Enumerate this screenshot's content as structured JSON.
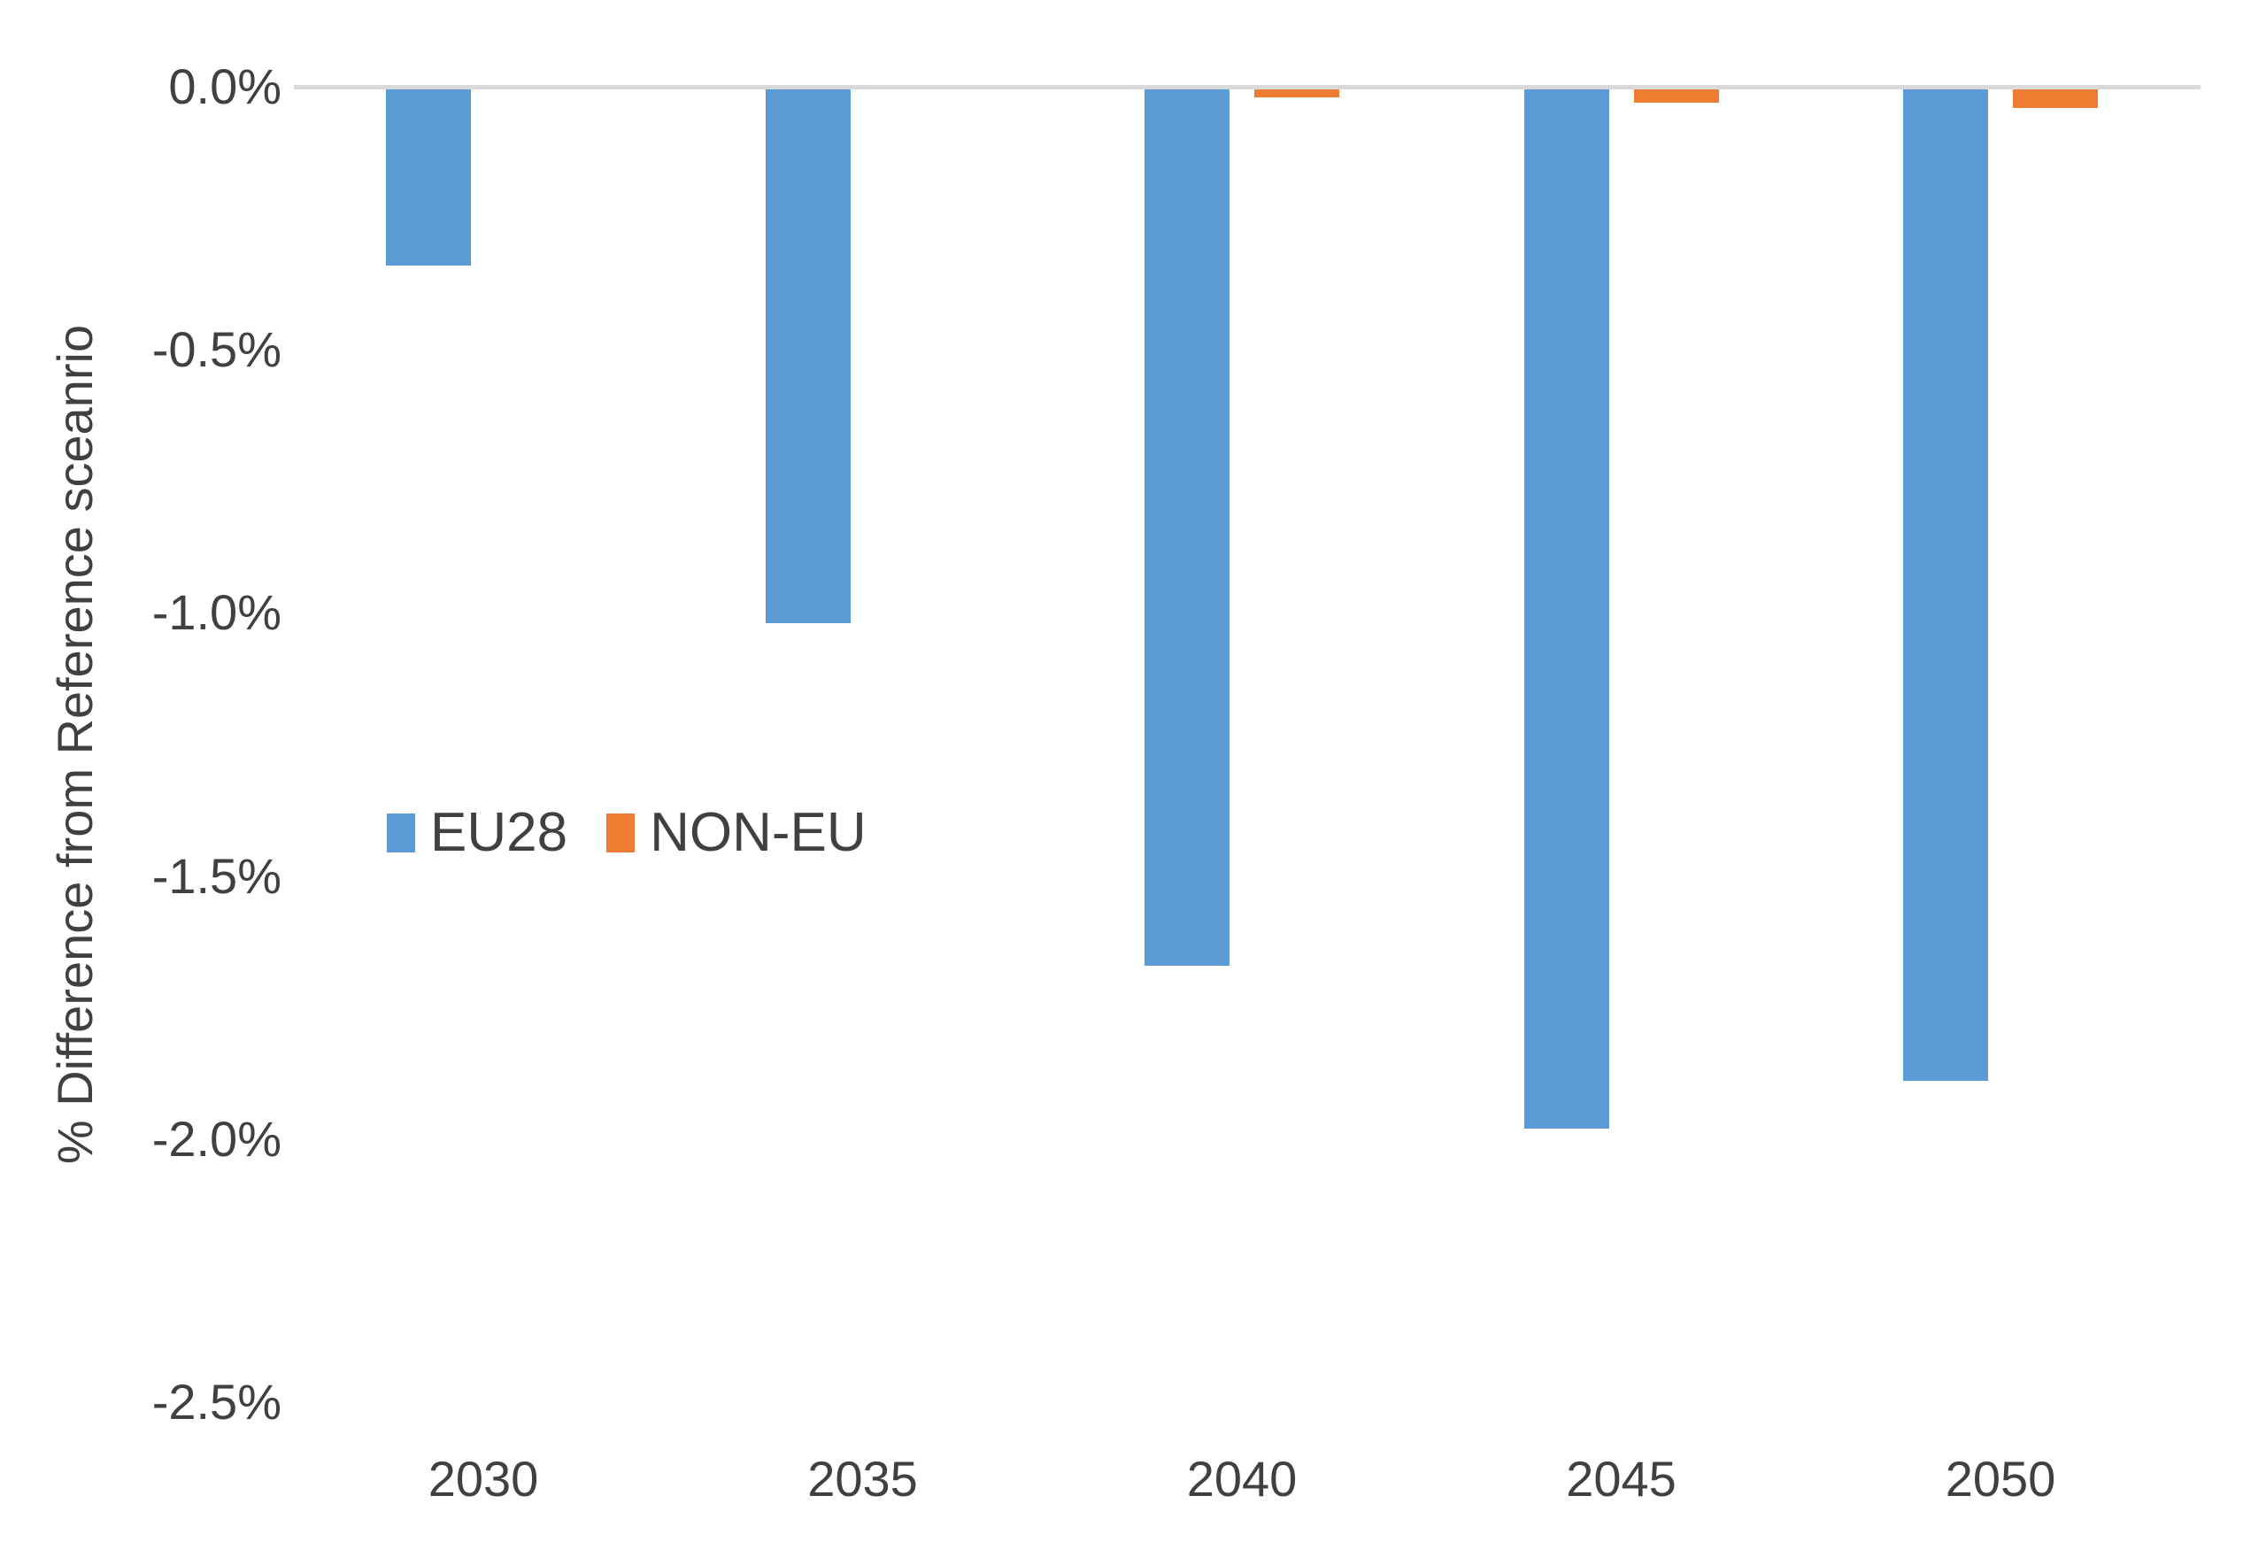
{
  "chart_data": {
    "type": "bar",
    "title": "",
    "categories": [
      "2030",
      "2035",
      "2040",
      "2045",
      "2050"
    ],
    "series": [
      {
        "name": "EU28",
        "color": "#5B9BD5",
        "values": [
          -0.34,
          -1.02,
          -1.67,
          -1.98,
          -1.89
        ]
      },
      {
        "name": "NON-EU",
        "color": "#ED7D31",
        "values": [
          0.0,
          0.0,
          -0.02,
          -0.03,
          -0.04
        ]
      }
    ],
    "xlabel": "",
    "ylabel": "% Difference from Reference sceanrio",
    "ylim": [
      -2.5,
      0
    ],
    "yticks": [
      {
        "label": "0.0%",
        "value": 0
      },
      {
        "label": "-0.5%",
        "value": -0.5
      },
      {
        "label": "-1.0%",
        "value": -1.0
      },
      {
        "label": "-1.5%",
        "value": -1.5
      },
      {
        "label": "-2.0%",
        "value": -2.0
      },
      {
        "label": "-2.5%",
        "value": -2.5
      }
    ],
    "grid": false,
    "legend_position": "inside-plot-left-middle",
    "values_unit": "percent",
    "colors": {
      "axis_line": "#D9D9D9",
      "text": "#404040",
      "background": "#FFFFFF"
    }
  }
}
